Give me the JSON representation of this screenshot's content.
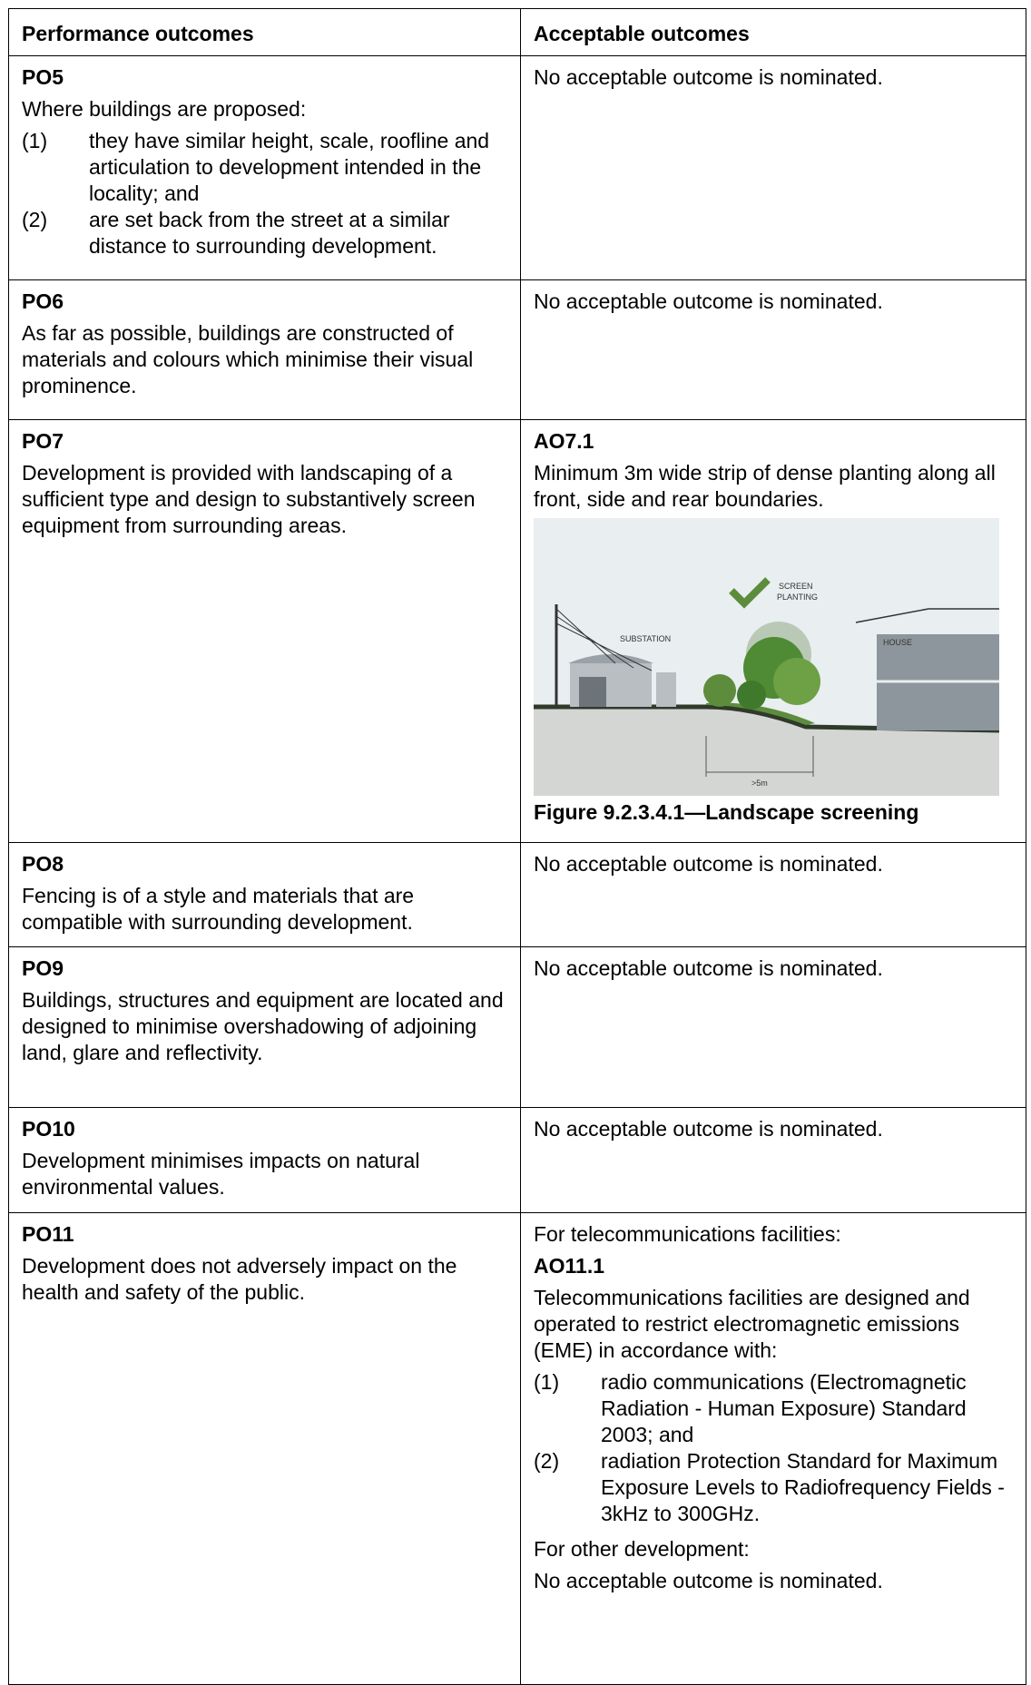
{
  "table": {
    "headers": [
      "Performance outcomes",
      "Acceptable outcomes"
    ],
    "rows": [
      {
        "po": {
          "code": "PO5",
          "text": "Where buildings are proposed:",
          "items": [
            {
              "num": "(1)",
              "text": "they have similar height, scale, roofline and articulation to development intended in the locality; and"
            },
            {
              "num": "(2)",
              "text": "are set back from the street at a similar distance to surrounding development."
            }
          ]
        },
        "ao": {
          "text": "No acceptable outcome is nominated."
        }
      },
      {
        "po": {
          "code": "PO6",
          "text": "As far as possible, buildings are constructed of materials and colours which minimise their visual prominence."
        },
        "ao": {
          "text": "No acceptable outcome is nominated."
        }
      },
      {
        "po": {
          "code": "PO7",
          "text": "Development is provided with landscaping of a sufficient type and design to substantively screen equipment from surrounding areas."
        },
        "ao": {
          "code": "AO7.1",
          "text": "Minimum 3m wide strip of dense planting along all front, side and rear boundaries.",
          "figure": {
            "screen_planting": [
              "SCREEN",
              "PLANTING"
            ],
            "substation": "SUBSTATION",
            "house": "HOUSE",
            "distance": ">5m",
            "caption": "Figure 9.2.3.4.1—Landscape screening"
          }
        }
      },
      {
        "po": {
          "code": "PO8",
          "text": "Fencing is of a style and materials that are compatible with surrounding development."
        },
        "ao": {
          "text": "No acceptable outcome is nominated."
        }
      },
      {
        "po": {
          "code": "PO9",
          "text": "Buildings, structures and equipment are located and designed to minimise overshadowing of adjoining land, glare and reflectivity."
        },
        "ao": {
          "text": "No acceptable outcome is nominated."
        }
      },
      {
        "po": {
          "code": "PO10",
          "text": "Development minimises impacts on natural environmental values."
        },
        "ao": {
          "text": "No acceptable outcome is nominated."
        }
      },
      {
        "po": {
          "code": "PO11",
          "text": "Development does not adversely impact on the health and safety of the public."
        },
        "ao": {
          "intro": "For telecommunications facilities:",
          "code": "AO11.1",
          "text": "Telecommunications facilities are designed and operated to restrict electromagnetic emissions (EME) in accordance with:",
          "items": [
            {
              "num": "(1)",
              "text": "radio communications (Electromagnetic Radiation - Human Exposure) Standard 2003; and"
            },
            {
              "num": "(2)",
              "text": "radiation Protection Standard for Maximum Exposure Levels to Radiofrequency Fields - 3kHz to 300GHz."
            }
          ],
          "other_intro": "For other development:",
          "other_text": "No acceptable outcome is nominated."
        }
      }
    ]
  }
}
